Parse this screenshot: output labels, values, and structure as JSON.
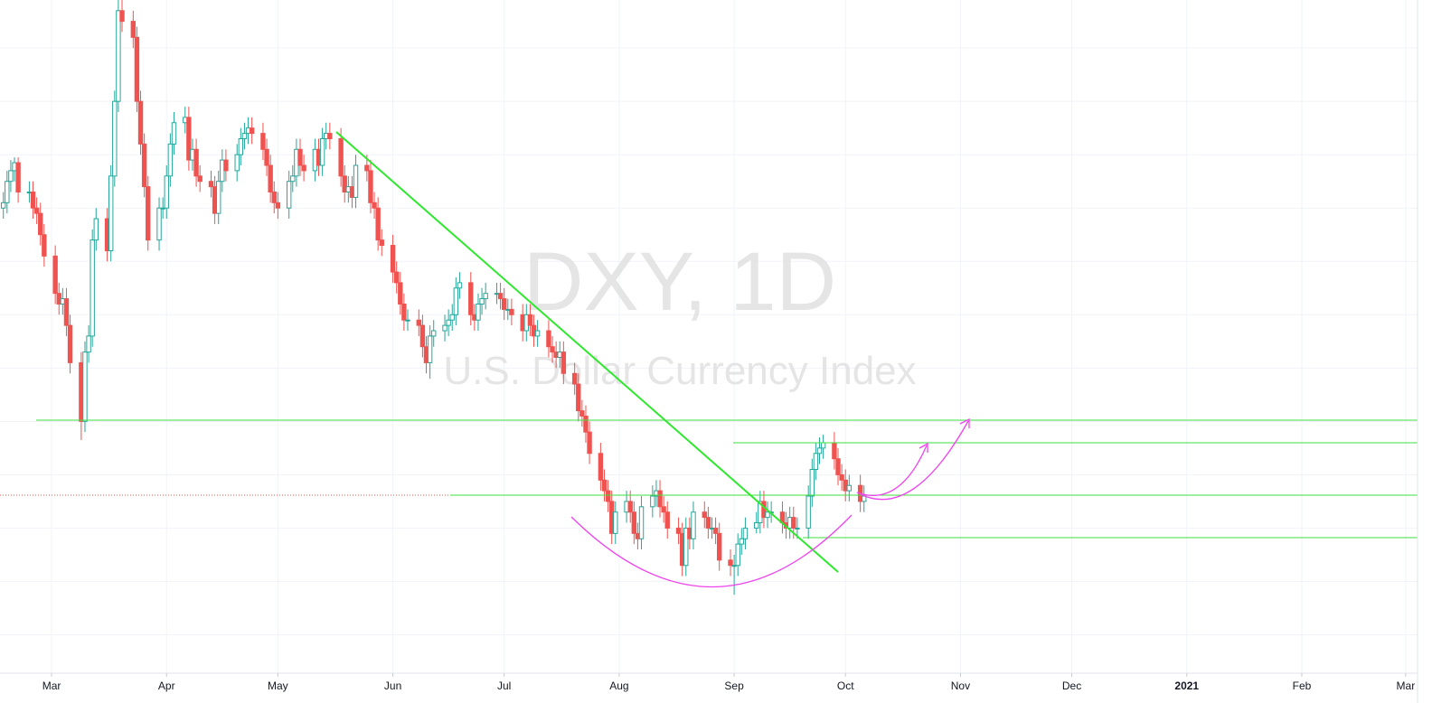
{
  "chart_data": {
    "type": "candlestick",
    "title": "DXY, 1D",
    "subtitle": "U.S. Dollar Currency Index",
    "x": [
      47,
      48,
      49,
      50,
      51,
      54,
      55,
      56,
      57,
      58,
      61,
      62,
      63,
      64,
      65,
      68,
      69,
      70,
      71,
      72,
      75,
      76,
      77,
      78,
      79,
      82,
      83,
      84,
      85,
      86,
      89,
      90,
      91,
      92,
      93,
      96,
      97,
      98,
      99,
      100,
      103,
      104,
      105,
      106,
      107,
      110,
      111,
      112,
      113,
      114,
      117,
      118,
      119,
      120,
      121,
      124,
      125,
      126,
      127,
      128,
      131,
      132,
      133,
      134,
      135,
      138,
      139,
      140,
      141,
      142,
      145,
      146,
      147,
      148,
      149,
      152,
      153,
      154,
      155,
      156,
      159,
      160,
      161,
      162,
      163,
      166,
      167,
      168,
      169,
      170,
      173,
      174,
      175,
      176,
      177,
      180,
      181,
      182,
      183,
      184,
      187,
      188,
      189,
      190,
      191,
      194,
      195,
      196,
      197,
      198,
      201,
      202,
      203,
      204,
      205,
      208,
      209,
      210,
      211,
      212,
      215,
      216,
      217,
      218,
      219,
      222,
      223,
      224,
      225,
      226,
      229,
      230,
      231,
      232,
      233,
      236,
      237,
      238,
      239,
      240,
      243,
      244,
      245,
      246,
      247,
      250,
      251,
      252,
      253,
      254,
      257,
      258,
      259,
      260,
      261,
      264,
      265,
      266,
      267,
      268,
      271,
      272,
      273,
      274,
      275,
      278,
      279
    ],
    "ohlc": [
      [
        99.0,
        99.3,
        98.8,
        99.1
      ],
      [
        99.1,
        99.7,
        98.9,
        99.5
      ],
      [
        99.5,
        99.9,
        99.3,
        99.7
      ],
      [
        99.7,
        99.95,
        99.5,
        99.85
      ],
      [
        99.85,
        99.95,
        99.1,
        99.3
      ],
      [
        99.3,
        99.5,
        99.1,
        99.3
      ],
      [
        99.3,
        99.5,
        98.8,
        99.0
      ],
      [
        99.0,
        99.2,
        98.7,
        98.9
      ],
      [
        98.9,
        99.1,
        98.3,
        98.5
      ],
      [
        98.5,
        98.7,
        97.9,
        98.1
      ],
      [
        98.1,
        98.3,
        97.2,
        97.4
      ],
      [
        97.4,
        97.6,
        97.0,
        97.2
      ],
      [
        97.2,
        97.5,
        97.0,
        97.3
      ],
      [
        97.3,
        97.5,
        96.6,
        96.8
      ],
      [
        96.8,
        97.0,
        95.9,
        96.1
      ],
      [
        96.1,
        96.3,
        94.65,
        95.0
      ],
      [
        95.0,
        96.5,
        94.8,
        96.3
      ],
      [
        96.3,
        96.8,
        96.1,
        96.6
      ],
      [
        96.6,
        98.6,
        96.4,
        98.4
      ],
      [
        98.4,
        99.0,
        98.2,
        98.8
      ],
      [
        98.8,
        99.0,
        98.0,
        98.2
      ],
      [
        98.2,
        99.8,
        98.0,
        99.6
      ],
      [
        99.6,
        101.2,
        99.4,
        101.0
      ],
      [
        101.0,
        103.0,
        100.8,
        102.7
      ],
      [
        102.7,
        102.99,
        102.3,
        102.5
      ],
      [
        102.5,
        102.7,
        102.0,
        102.2
      ],
      [
        102.2,
        102.4,
        100.8,
        101.0
      ],
      [
        101.0,
        101.2,
        100.0,
        100.2
      ],
      [
        100.2,
        100.4,
        99.2,
        99.4
      ],
      [
        99.4,
        99.6,
        98.2,
        98.4
      ],
      [
        98.4,
        99.2,
        98.2,
        99.0
      ],
      [
        99.0,
        99.2,
        98.8,
        99.0
      ],
      [
        99.0,
        99.8,
        98.8,
        99.6
      ],
      [
        99.6,
        100.4,
        99.4,
        100.2
      ],
      [
        100.2,
        100.8,
        100.0,
        100.6
      ],
      [
        100.6,
        100.9,
        100.4,
        100.7
      ],
      [
        100.7,
        100.9,
        99.7,
        99.9
      ],
      [
        99.9,
        100.3,
        99.7,
        100.1
      ],
      [
        100.1,
        100.3,
        99.4,
        99.6
      ],
      [
        99.6,
        99.8,
        99.3,
        99.5
      ],
      [
        99.5,
        99.7,
        99.2,
        99.4
      ],
      [
        99.4,
        99.6,
        98.7,
        98.9
      ],
      [
        98.9,
        99.7,
        98.7,
        99.5
      ],
      [
        99.5,
        100.1,
        99.3,
        99.9
      ],
      [
        99.9,
        100.1,
        99.5,
        99.7
      ],
      [
        99.7,
        100.2,
        99.5,
        100.0
      ],
      [
        100.0,
        100.5,
        99.8,
        100.3
      ],
      [
        100.3,
        100.6,
        100.1,
        100.4
      ],
      [
        100.4,
        100.7,
        100.2,
        100.5
      ],
      [
        100.5,
        100.7,
        100.2,
        100.4
      ],
      [
        100.4,
        100.6,
        99.9,
        100.1
      ],
      [
        100.1,
        100.3,
        99.6,
        99.8
      ],
      [
        99.8,
        100.0,
        99.1,
        99.3
      ],
      [
        99.3,
        99.5,
        98.9,
        99.1
      ],
      [
        99.1,
        99.3,
        98.8,
        99.0
      ],
      [
        99.0,
        99.7,
        98.8,
        99.5
      ],
      [
        99.5,
        99.8,
        99.3,
        99.6
      ],
      [
        99.6,
        100.3,
        99.4,
        100.1
      ],
      [
        100.1,
        100.3,
        99.6,
        99.8
      ],
      [
        99.8,
        100.0,
        99.5,
        99.7
      ],
      [
        99.7,
        100.3,
        99.5,
        100.1
      ],
      [
        100.1,
        100.3,
        99.6,
        99.8
      ],
      [
        99.8,
        100.5,
        99.6,
        100.3
      ],
      [
        100.3,
        100.6,
        100.1,
        100.4
      ],
      [
        100.4,
        100.6,
        100.1,
        100.3
      ],
      [
        100.3,
        100.5,
        99.4,
        99.6
      ],
      [
        99.6,
        99.8,
        99.1,
        99.3
      ],
      [
        99.3,
        99.6,
        99.1,
        99.4
      ],
      [
        99.4,
        99.6,
        99.0,
        99.2
      ],
      [
        99.2,
        100.0,
        99.0,
        99.8
      ],
      [
        99.8,
        100.0,
        99.5,
        99.7
      ],
      [
        99.7,
        99.9,
        98.9,
        99.1
      ],
      [
        99.1,
        99.3,
        98.8,
        99.0
      ],
      [
        99.0,
        99.2,
        98.2,
        98.4
      ],
      [
        98.4,
        98.6,
        98.1,
        98.3
      ],
      [
        98.3,
        98.5,
        97.6,
        97.8
      ],
      [
        97.8,
        98.0,
        97.4,
        97.6
      ],
      [
        97.6,
        97.8,
        97.0,
        97.2
      ],
      [
        97.2,
        97.4,
        96.7,
        96.9
      ],
      [
        96.9,
        97.1,
        96.7,
        96.9
      ],
      [
        96.9,
        97.1,
        96.6,
        96.8
      ],
      [
        96.8,
        97.0,
        96.2,
        96.4
      ],
      [
        96.4,
        96.6,
        95.9,
        96.1
      ],
      [
        96.1,
        96.8,
        95.8,
        96.6
      ],
      [
        96.6,
        96.9,
        96.4,
        96.7
      ],
      [
        96.7,
        97.0,
        96.5,
        96.8
      ],
      [
        96.8,
        97.1,
        96.6,
        96.9
      ],
      [
        96.9,
        97.2,
        96.7,
        97.0
      ],
      [
        97.0,
        97.7,
        96.8,
        97.5
      ],
      [
        97.5,
        97.8,
        97.3,
        97.6
      ],
      [
        97.6,
        97.8,
        96.8,
        97.0
      ],
      [
        97.0,
        97.2,
        96.7,
        96.9
      ],
      [
        96.9,
        97.4,
        96.7,
        97.2
      ],
      [
        97.2,
        97.5,
        97.0,
        97.3
      ],
      [
        97.3,
        97.6,
        97.1,
        97.4
      ],
      [
        97.4,
        97.6,
        97.2,
        97.4
      ],
      [
        97.4,
        97.6,
        97.1,
        97.3
      ],
      [
        97.3,
        97.5,
        96.9,
        97.1
      ],
      [
        97.1,
        97.3,
        96.9,
        97.1
      ],
      [
        97.1,
        97.3,
        96.8,
        97.0
      ],
      [
        97.0,
        97.2,
        96.5,
        96.7
      ],
      [
        96.7,
        97.2,
        96.5,
        97.0
      ],
      [
        97.0,
        97.2,
        96.6,
        96.8
      ],
      [
        96.8,
        97.0,
        96.4,
        96.6
      ],
      [
        96.6,
        96.9,
        96.4,
        96.7
      ],
      [
        96.7,
        96.9,
        96.2,
        96.4
      ],
      [
        96.4,
        96.6,
        96.1,
        96.3
      ],
      [
        96.3,
        96.5,
        96.0,
        96.2
      ],
      [
        96.2,
        96.5,
        96.0,
        96.3
      ],
      [
        96.3,
        96.5,
        95.7,
        95.9
      ],
      [
        95.9,
        96.1,
        95.5,
        95.7
      ],
      [
        95.7,
        95.9,
        95.0,
        95.2
      ],
      [
        95.2,
        95.4,
        94.9,
        95.1
      ],
      [
        95.1,
        95.3,
        94.6,
        94.8
      ],
      [
        94.8,
        95.0,
        94.2,
        94.4
      ],
      [
        94.4,
        94.6,
        93.7,
        93.9
      ],
      [
        93.9,
        94.1,
        93.5,
        93.7
      ],
      [
        93.7,
        93.9,
        93.3,
        93.5
      ],
      [
        93.5,
        93.7,
        92.7,
        92.9
      ],
      [
        92.9,
        93.5,
        92.7,
        93.3
      ],
      [
        93.3,
        93.7,
        93.1,
        93.5
      ],
      [
        93.5,
        93.7,
        93.1,
        93.3
      ],
      [
        93.3,
        93.5,
        92.7,
        92.9
      ],
      [
        92.9,
        93.1,
        92.6,
        92.8
      ],
      [
        92.8,
        93.6,
        92.6,
        93.4
      ],
      [
        93.4,
        93.8,
        93.2,
        93.6
      ],
      [
        93.6,
        93.9,
        93.4,
        93.7
      ],
      [
        93.7,
        93.9,
        93.2,
        93.4
      ],
      [
        93.4,
        93.6,
        93.1,
        93.3
      ],
      [
        93.3,
        93.5,
        92.8,
        93.0
      ],
      [
        93.0,
        93.2,
        92.7,
        92.9
      ],
      [
        92.9,
        93.1,
        92.1,
        92.3
      ],
      [
        92.3,
        93.2,
        92.1,
        93.0
      ],
      [
        93.0,
        93.2,
        92.6,
        92.8
      ],
      [
        92.8,
        93.5,
        92.6,
        93.3
      ],
      [
        93.3,
        93.5,
        93.0,
        93.2
      ],
      [
        93.2,
        93.4,
        92.8,
        93.0
      ],
      [
        93.0,
        93.2,
        92.8,
        93.0
      ],
      [
        93.0,
        93.2,
        92.7,
        92.9
      ],
      [
        92.9,
        93.1,
        92.2,
        92.4
      ],
      [
        92.4,
        92.6,
        92.1,
        92.3
      ],
      [
        92.3,
        92.5,
        91.75,
        92.3
      ],
      [
        92.3,
        92.9,
        92.1,
        92.7
      ],
      [
        92.7,
        93.0,
        92.5,
        92.8
      ],
      [
        92.8,
        93.2,
        92.6,
        93.0
      ],
      [
        93.0,
        93.3,
        92.9,
        93.1
      ],
      [
        93.1,
        93.7,
        92.9,
        93.5
      ],
      [
        93.5,
        93.7,
        93.0,
        93.2
      ],
      [
        93.2,
        93.5,
        93.0,
        93.3
      ],
      [
        93.3,
        93.5,
        93.1,
        93.3
      ],
      [
        93.3,
        93.5,
        92.9,
        93.1
      ],
      [
        93.1,
        93.3,
        92.8,
        93.0
      ],
      [
        93.0,
        93.4,
        92.8,
        93.2
      ],
      [
        93.2,
        93.4,
        92.8,
        93.0
      ],
      [
        93.0,
        93.2,
        92.8,
        93.0
      ],
      [
        93.0,
        93.8,
        92.8,
        93.6
      ],
      [
        93.6,
        94.3,
        93.4,
        94.1
      ],
      [
        94.1,
        94.6,
        93.9,
        94.4
      ],
      [
        94.4,
        94.7,
        94.2,
        94.5
      ],
      [
        94.5,
        94.75,
        94.3,
        94.6
      ],
      [
        94.6,
        94.8,
        94.1,
        94.3
      ],
      [
        94.3,
        94.5,
        93.8,
        94.0
      ],
      [
        94.0,
        94.2,
        93.7,
        93.9
      ],
      [
        93.9,
        94.1,
        93.5,
        93.7
      ],
      [
        93.7,
        94.0,
        93.5,
        93.8
      ],
      [
        93.8,
        94.0,
        93.3,
        93.5
      ],
      [
        93.5,
        93.8,
        93.3,
        93.6
      ]
    ],
    "up_color": "#26a69a",
    "down_color": "#ef5350",
    "xlim": [
      46.1,
      428.2
    ],
    "xticks": [
      {
        "value": 60,
        "label": "Mar"
      },
      {
        "value": 91,
        "label": "Apr"
      },
      {
        "value": 121,
        "label": "May"
      },
      {
        "value": 152,
        "label": "Jun"
      },
      {
        "value": 182,
        "label": "Jul"
      },
      {
        "value": 213,
        "label": "Aug"
      },
      {
        "value": 244,
        "label": "Sep"
      },
      {
        "value": 274,
        "label": "Oct"
      },
      {
        "value": 305,
        "label": "Nov"
      },
      {
        "value": 335,
        "label": "Dec"
      },
      {
        "value": 366,
        "label": "2021"
      },
      {
        "value": 397,
        "label": "Feb"
      },
      {
        "value": 425,
        "label": "Mar"
      }
    ],
    "ylim": [
      90.28,
      102.9
    ],
    "ygrid": [
      91,
      92,
      93,
      94,
      95,
      96,
      97,
      98,
      99,
      100,
      101,
      102
    ],
    "grid": true
  }
}
